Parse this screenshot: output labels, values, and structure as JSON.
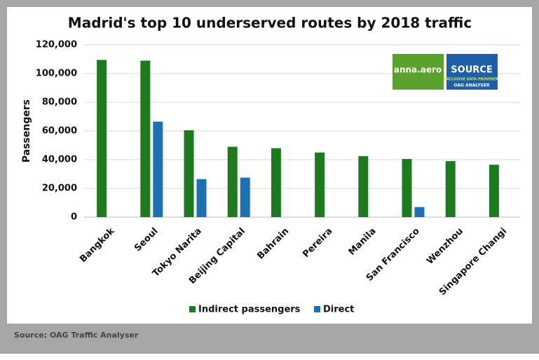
{
  "chart_data": {
    "type": "bar",
    "title": "Madrid's top 10 underserved routes by 2018 traffic",
    "y_label": "Passengers",
    "source": "Source: OAG Traffic Analyser",
    "logos": {
      "anna": "anna.aero",
      "source": "SOURCE",
      "provider": "EXCLUSIVE DATA PROVIDER:",
      "oag": "OAG ANALYSER"
    },
    "categories": [
      "Bangkok",
      "Seoul",
      "Tokyo Narita",
      "Beijing Capital",
      "Bahrain",
      "Pereira",
      "Manila",
      "San Francisco",
      "Wenzhou",
      "Singapore Changi"
    ],
    "series": [
      {
        "name": "Indirect passengers",
        "color": "#1e7a1e",
        "values": [
          109500,
          109000,
          60500,
          49000,
          48000,
          45000,
          42500,
          40500,
          39000,
          36500
        ]
      },
      {
        "name": "Direct",
        "color": "#1f6fb4",
        "values": [
          null,
          66500,
          26500,
          27500,
          null,
          null,
          null,
          7000,
          null,
          null
        ]
      }
    ],
    "ylim": [
      0,
      120000
    ],
    "yticks": [
      0,
      {
        "value": 20000,
        "label": "20,000"
      },
      {
        "value": 40000,
        "label": "40,000"
      },
      {
        "value": 60000,
        "label": "60,000"
      },
      {
        "value": 80000,
        "label": "80,000"
      },
      {
        "value": 100000,
        "label": "100,000"
      },
      {
        "value": 120000,
        "label": "120,000"
      }
    ],
    "grid": true,
    "legend": "bottom"
  }
}
